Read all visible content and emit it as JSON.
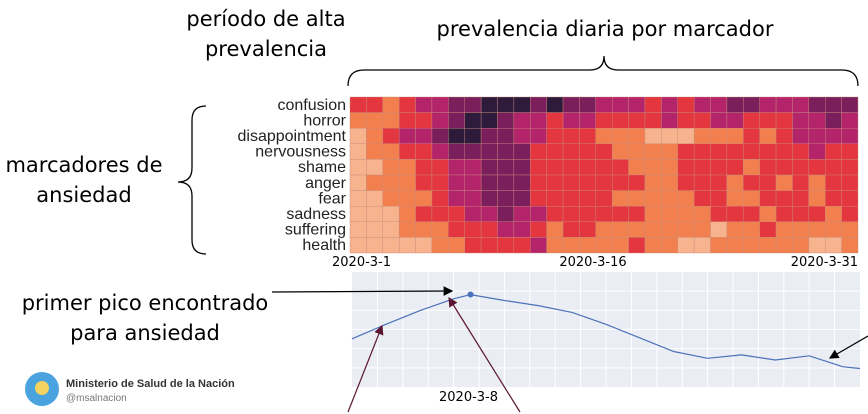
{
  "annotations": {
    "period": "período de alta prevalencia",
    "daily": "prevalencia diaria por marcador",
    "markers": "marcadores de ansiedad",
    "peak": "primer pico encontrado para ansiedad"
  },
  "source": {
    "org_name": "Ministerio de Salud de la Nación",
    "handle": "@msalnacion"
  },
  "colors": {
    "scale": [
      "#f6b38e",
      "#f2804f",
      "#e3363f",
      "#b4246a",
      "#7a1f5b",
      "#2e1a3b"
    ],
    "line": "#4a72b8",
    "line_bg": "#ebedf5",
    "arrow_dark": "#5a1530"
  },
  "chart_data": [
    {
      "type": "heatmap",
      "title": "",
      "rows": [
        "confusion",
        "horror",
        "disappointment",
        "nervousness",
        "shame",
        "anger",
        "fear",
        "sadness",
        "suffering",
        "health"
      ],
      "x_tick_labels": [
        "2020-3-1",
        "2020-3-16",
        "2020-3-31"
      ],
      "x_days": 31,
      "value_scale": "0 = lowest prevalence (light) to 5 = highest prevalence (dark)",
      "values": [
        [
          2,
          2,
          1,
          2,
          3,
          3,
          4,
          4,
          5,
          5,
          5,
          4,
          5,
          4,
          4,
          3,
          3,
          3,
          2,
          3,
          2,
          3,
          3,
          4,
          4,
          3,
          3,
          3,
          4,
          4,
          4
        ],
        [
          1,
          1,
          1,
          2,
          2,
          3,
          4,
          5,
          5,
          4,
          3,
          3,
          2,
          3,
          3,
          2,
          2,
          2,
          2,
          3,
          2,
          2,
          3,
          3,
          2,
          2,
          2,
          3,
          3,
          4,
          3
        ],
        [
          0,
          1,
          2,
          3,
          3,
          4,
          5,
          5,
          4,
          4,
          3,
          3,
          2,
          2,
          2,
          1,
          1,
          1,
          0,
          0,
          0,
          1,
          1,
          1,
          2,
          1,
          2,
          3,
          3,
          3,
          3
        ],
        [
          0,
          1,
          1,
          2,
          2,
          3,
          4,
          4,
          4,
          4,
          4,
          2,
          2,
          2,
          2,
          2,
          1,
          1,
          1,
          1,
          2,
          2,
          2,
          2,
          2,
          2,
          2,
          2,
          3,
          2,
          2
        ],
        [
          0,
          0,
          1,
          1,
          2,
          2,
          3,
          3,
          4,
          4,
          4,
          2,
          2,
          2,
          2,
          2,
          2,
          1,
          1,
          1,
          2,
          2,
          2,
          2,
          1,
          2,
          2,
          2,
          2,
          2,
          2
        ],
        [
          0,
          1,
          1,
          1,
          2,
          2,
          3,
          3,
          4,
          4,
          4,
          2,
          2,
          2,
          2,
          2,
          2,
          2,
          1,
          1,
          2,
          2,
          2,
          1,
          2,
          2,
          1,
          2,
          1,
          2,
          2
        ],
        [
          0,
          0,
          1,
          1,
          1,
          2,
          3,
          3,
          4,
          4,
          4,
          2,
          2,
          2,
          2,
          2,
          1,
          1,
          1,
          1,
          1,
          2,
          2,
          1,
          1,
          2,
          2,
          2,
          1,
          2,
          2
        ],
        [
          0,
          0,
          0,
          1,
          2,
          2,
          2,
          3,
          3,
          4,
          3,
          3,
          2,
          2,
          2,
          2,
          2,
          2,
          1,
          1,
          1,
          1,
          2,
          2,
          2,
          1,
          2,
          2,
          2,
          1,
          2
        ],
        [
          0,
          0,
          0,
          1,
          1,
          1,
          2,
          2,
          2,
          3,
          3,
          2,
          1,
          2,
          2,
          1,
          1,
          1,
          1,
          1,
          1,
          1,
          0,
          1,
          1,
          2,
          1,
          1,
          1,
          1,
          1
        ],
        [
          0,
          0,
          0,
          0,
          0,
          1,
          1,
          2,
          2,
          2,
          2,
          3,
          1,
          1,
          1,
          1,
          1,
          2,
          1,
          1,
          0,
          0,
          1,
          1,
          1,
          1,
          1,
          1,
          0,
          0,
          1
        ]
      ]
    },
    {
      "type": "line",
      "title": "",
      "x_tick_labels": [
        "2020-3-8"
      ],
      "x": [
        1,
        3,
        5,
        7,
        8,
        10,
        12,
        14,
        16,
        18,
        20,
        22,
        24,
        26,
        28,
        30,
        31
      ],
      "y": [
        0.45,
        0.62,
        0.78,
        0.92,
        0.97,
        0.9,
        0.84,
        0.76,
        0.62,
        0.46,
        0.3,
        0.22,
        0.26,
        0.2,
        0.25,
        0.12,
        0.1
      ],
      "ylim": [
        0,
        1
      ],
      "highlighted_point": {
        "x": 8,
        "y": 0.97
      },
      "grid": true
    }
  ]
}
